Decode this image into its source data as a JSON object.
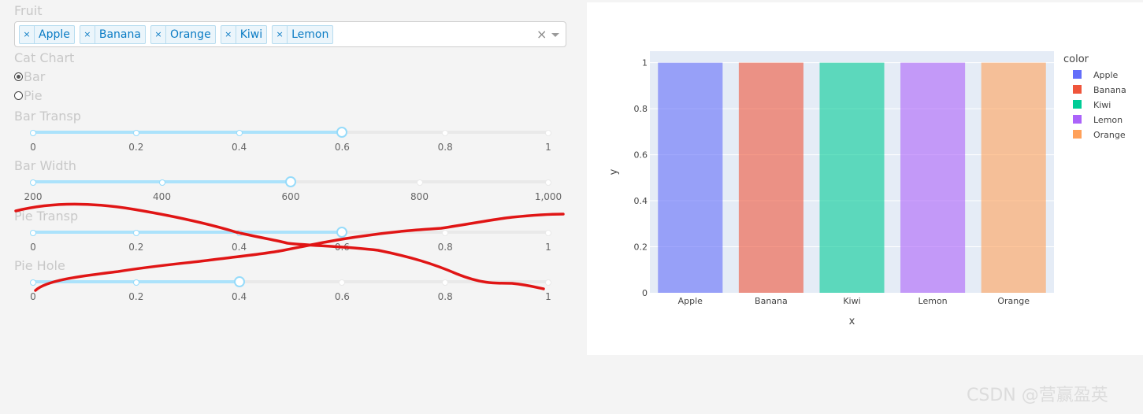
{
  "fruit": {
    "label": "Fruit",
    "selected": [
      "Apple",
      "Banana",
      "Orange",
      "Kiwi",
      "Lemon"
    ],
    "remove_symbol": "×",
    "clear_symbol": "×"
  },
  "cat_chart": {
    "label": "Cat Chart",
    "options": [
      {
        "label": "Bar",
        "checked": true
      },
      {
        "label": "Pie",
        "checked": false
      }
    ]
  },
  "sliders": [
    {
      "id": "bar-transp",
      "label": "Bar Transp",
      "marks": [
        "0",
        "0.2",
        "0.4",
        "0.6",
        "0.8",
        "1"
      ],
      "value_fraction": 0.6
    },
    {
      "id": "bar-width",
      "label": "Bar Width",
      "marks": [
        "200",
        "400",
        "600",
        "800",
        "1,000"
      ],
      "value_fraction": 0.5
    },
    {
      "id": "pie-transp",
      "label": "Pie Transp",
      "marks": [
        "0",
        "0.2",
        "0.4",
        "0.6",
        "0.8",
        "1"
      ],
      "value_fraction": 0.6
    },
    {
      "id": "pie-hole",
      "label": "Pie Hole",
      "marks": [
        "0",
        "0.2",
        "0.4",
        "0.6",
        "0.8",
        "1"
      ],
      "value_fraction": 0.4
    }
  ],
  "chart_data": {
    "type": "bar",
    "categories": [
      "Apple",
      "Banana",
      "Kiwi",
      "Lemon",
      "Orange"
    ],
    "values": [
      1,
      1,
      1,
      1,
      1
    ],
    "colors": [
      "#636efa",
      "#EF553B",
      "#00cc96",
      "#ab63fa",
      "#FFA15A"
    ],
    "opacity": 0.6,
    "xlabel": "x",
    "ylabel": "y",
    "ylim": [
      0,
      1.05
    ],
    "yticks": [
      "0",
      "0.2",
      "0.4",
      "0.6",
      "0.8",
      "1"
    ],
    "legend_title": "color",
    "legend_placement": "top-right",
    "plot_bg": "#e5ecf6",
    "grid": true
  },
  "watermark": "CSDN @营赢盈英"
}
